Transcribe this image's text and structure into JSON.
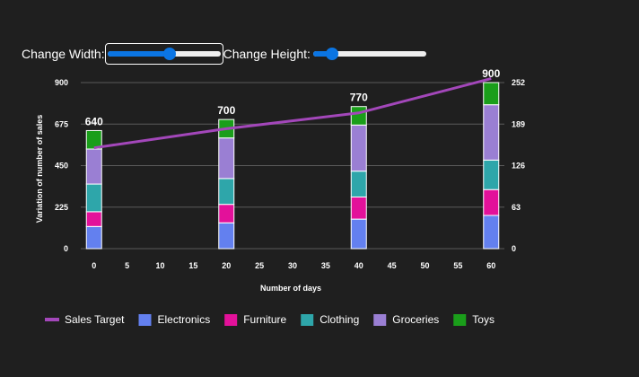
{
  "controls": {
    "width_label": "Change Width:",
    "height_label": "Change Height:",
    "width_value": 0.55,
    "height_value": 0.17
  },
  "colors": {
    "Sales Target": "#a347ba",
    "Electronics": "#6380ef",
    "Furniture": "#e3119a",
    "Clothing": "#2ea6aa",
    "Groceries": "#9a7fd3",
    "Toys": "#1a9e1a"
  },
  "chart_data": {
    "type": "bar",
    "stacked": true,
    "xlabel": "Number of days",
    "ylabel": "Variation of number of sales",
    "x_ticks": [
      0,
      5,
      10,
      15,
      20,
      25,
      30,
      35,
      40,
      45,
      50,
      55,
      60
    ],
    "x_range": [
      -2,
      62
    ],
    "y_ticks": [
      0,
      225,
      450,
      675,
      900
    ],
    "y_range": [
      0,
      900
    ],
    "y2_ticks": [
      0,
      63,
      126,
      189,
      252
    ],
    "y2_range": [
      0,
      252
    ],
    "x": [
      0,
      20,
      40,
      60
    ],
    "series": [
      {
        "name": "Electronics",
        "values": [
          120,
          140,
          160,
          180
        ]
      },
      {
        "name": "Furniture",
        "values": [
          80,
          100,
          120,
          140
        ]
      },
      {
        "name": "Clothing",
        "values": [
          150,
          140,
          140,
          160
        ]
      },
      {
        "name": "Groceries",
        "values": [
          190,
          220,
          250,
          300
        ]
      },
      {
        "name": "Toys",
        "values": [
          100,
          100,
          100,
          120
        ]
      }
    ],
    "totals": [
      "640",
      "700",
      "770",
      "900"
    ],
    "line": {
      "name": "Sales Target",
      "x": [
        0,
        20,
        40,
        60
      ],
      "values": [
        153,
        182,
        206,
        258
      ]
    },
    "legend": [
      "Sales Target",
      "Electronics",
      "Furniture",
      "Clothing",
      "Groceries",
      "Toys"
    ],
    "legend_position": "bottom-left",
    "grid": true
  }
}
